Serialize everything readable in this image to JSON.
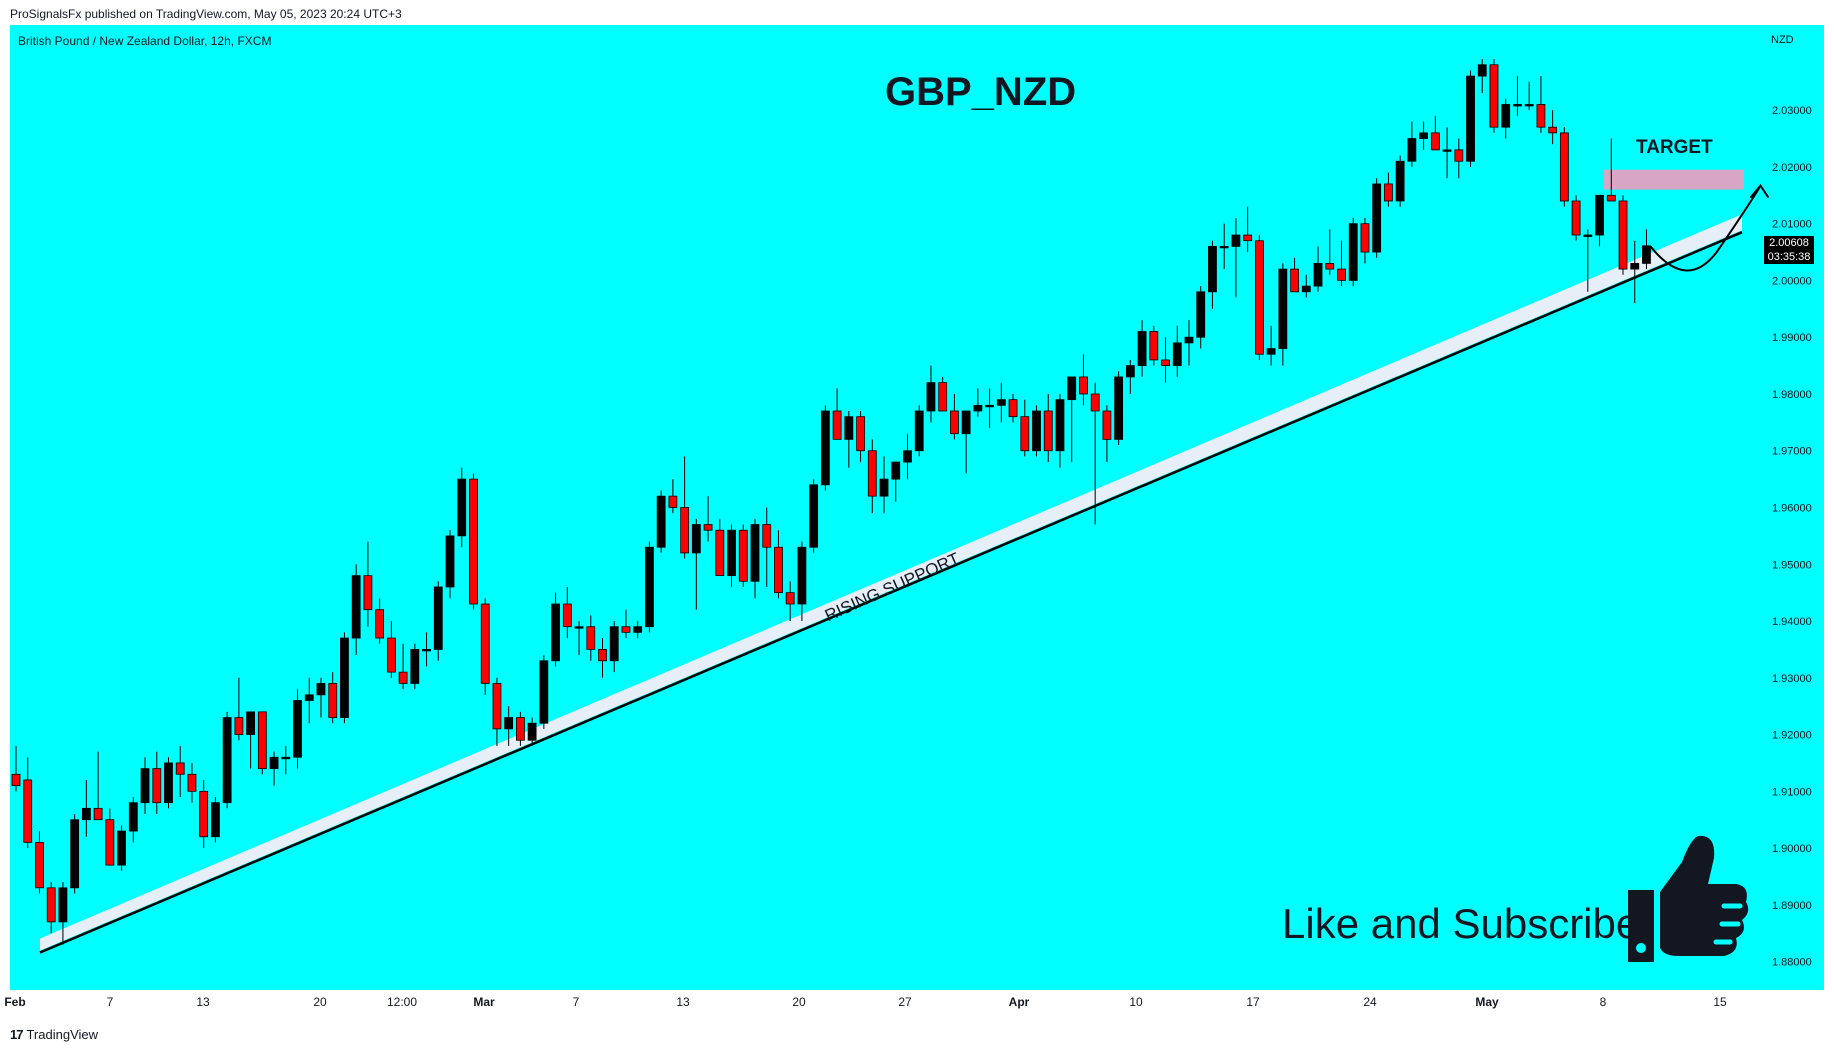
{
  "header": {
    "published": "ProSignalsFx published on TradingView.com, May 05, 2023 20:24 UTC+3"
  },
  "footer": {
    "brand": "TradingView",
    "logo": "17"
  },
  "chart_data": {
    "type": "candlestick",
    "symbol_line": "British Pound / New Zealand Dollar, 12h, FXCM",
    "currency": "NZD",
    "background": "#00FFFF",
    "up_color": "#000000",
    "down_color": "#FF0000",
    "ylim": [
      1.875,
      2.045
    ],
    "y_ticks": [
      "2.03000",
      "2.02000",
      "2.01000",
      "2.00000",
      "1.99000",
      "1.98000",
      "1.97000",
      "1.96000",
      "1.95000",
      "1.94000",
      "1.93000",
      "1.92000",
      "1.91000",
      "1.90000",
      "1.89000",
      "1.88000"
    ],
    "x_ticks": [
      "Feb",
      "7",
      "13",
      "20",
      "12:00",
      "Mar",
      "7",
      "13",
      "20",
      "27",
      "Apr",
      "10",
      "17",
      "24",
      "May",
      "8",
      "15"
    ],
    "last_price": "2.00608",
    "countdown": "03:35:38",
    "annotations": {
      "title": "GBP_NZD",
      "target_label": "TARGET",
      "support_label": "RISING SUPPORT",
      "cta": "Like and Subscribe"
    },
    "trendline": {
      "start": [
        "Feb 2",
        1.8816
      ],
      "end": [
        "May 14",
        2.0085
      ]
    },
    "target_zone": [
      2.016,
      2.0195
    ],
    "candles": [
      [
        1.913,
        1.918,
        1.91,
        1.911
      ],
      [
        1.912,
        1.916,
        1.9,
        1.901
      ],
      [
        1.901,
        1.903,
        1.892,
        1.893
      ],
      [
        1.893,
        1.894,
        1.885,
        1.887
      ],
      [
        1.887,
        1.894,
        1.883,
        1.893
      ],
      [
        1.893,
        1.906,
        1.892,
        1.905
      ],
      [
        1.905,
        1.912,
        1.902,
        1.907
      ],
      [
        1.907,
        1.917,
        1.905,
        1.905
      ],
      [
        1.905,
        1.907,
        1.897,
        1.897
      ],
      [
        1.897,
        1.904,
        1.896,
        1.903
      ],
      [
        1.903,
        1.909,
        1.901,
        1.908
      ],
      [
        1.908,
        1.916,
        1.906,
        1.914
      ],
      [
        1.914,
        1.917,
        1.906,
        1.908
      ],
      [
        1.908,
        1.916,
        1.907,
        1.915
      ],
      [
        1.915,
        1.918,
        1.909,
        1.913
      ],
      [
        1.913,
        1.915,
        1.908,
        1.91
      ],
      [
        1.91,
        1.912,
        1.9,
        1.902
      ],
      [
        1.902,
        1.909,
        1.901,
        1.908
      ],
      [
        1.908,
        1.924,
        1.907,
        1.923
      ],
      [
        1.923,
        1.93,
        1.919,
        1.92
      ],
      [
        1.92,
        1.924,
        1.914,
        1.924
      ],
      [
        1.924,
        1.924,
        1.913,
        1.914
      ],
      [
        1.914,
        1.917,
        1.911,
        1.916
      ],
      [
        1.916,
        1.918,
        1.913,
        1.916
      ],
      [
        1.916,
        1.928,
        1.914,
        1.926
      ],
      [
        1.926,
        1.93,
        1.922,
        1.927
      ],
      [
        1.927,
        1.93,
        1.923,
        1.929
      ],
      [
        1.929,
        1.931,
        1.922,
        1.923
      ],
      [
        1.923,
        1.938,
        1.922,
        1.937
      ],
      [
        1.937,
        1.95,
        1.934,
        1.948
      ],
      [
        1.948,
        1.954,
        1.939,
        1.942
      ],
      [
        1.942,
        1.944,
        1.936,
        1.937
      ],
      [
        1.937,
        1.94,
        1.93,
        1.931
      ],
      [
        1.931,
        1.936,
        1.928,
        1.929
      ],
      [
        1.929,
        1.936,
        1.928,
        1.935
      ],
      [
        1.935,
        1.938,
        1.932,
        1.935
      ],
      [
        1.935,
        1.947,
        1.933,
        1.946
      ],
      [
        1.946,
        1.956,
        1.944,
        1.955
      ],
      [
        1.955,
        1.967,
        1.953,
        1.965
      ],
      [
        1.965,
        1.966,
        1.942,
        1.943
      ],
      [
        1.943,
        1.944,
        1.927,
        1.929
      ],
      [
        1.929,
        1.93,
        1.918,
        1.921
      ],
      [
        1.921,
        1.925,
        1.918,
        1.923
      ],
      [
        1.923,
        1.924,
        1.918,
        1.919
      ],
      [
        1.919,
        1.923,
        1.918,
        1.922
      ],
      [
        1.922,
        1.934,
        1.921,
        1.933
      ],
      [
        1.933,
        1.945,
        1.932,
        1.943
      ],
      [
        1.943,
        1.946,
        1.937,
        1.939
      ],
      [
        1.939,
        1.94,
        1.934,
        1.939
      ],
      [
        1.939,
        1.941,
        1.933,
        1.935
      ],
      [
        1.935,
        1.937,
        1.93,
        1.933
      ],
      [
        1.933,
        1.94,
        1.931,
        1.939
      ],
      [
        1.939,
        1.942,
        1.937,
        1.938
      ],
      [
        1.938,
        1.94,
        1.937,
        1.939
      ],
      [
        1.939,
        1.954,
        1.938,
        1.953
      ],
      [
        1.953,
        1.963,
        1.952,
        1.962
      ],
      [
        1.962,
        1.965,
        1.959,
        1.96
      ],
      [
        1.96,
        1.969,
        1.951,
        1.952
      ],
      [
        1.952,
        1.958,
        1.942,
        1.957
      ],
      [
        1.957,
        1.962,
        1.954,
        1.956
      ],
      [
        1.956,
        1.958,
        1.948,
        1.948
      ],
      [
        1.948,
        1.957,
        1.946,
        1.956
      ],
      [
        1.956,
        1.957,
        1.946,
        1.947
      ],
      [
        1.947,
        1.958,
        1.944,
        1.957
      ],
      [
        1.957,
        1.96,
        1.946,
        1.953
      ],
      [
        1.953,
        1.956,
        1.944,
        1.945
      ],
      [
        1.945,
        1.947,
        1.94,
        1.943
      ],
      [
        1.943,
        1.954,
        1.94,
        1.953
      ],
      [
        1.953,
        1.965,
        1.952,
        1.964
      ],
      [
        1.964,
        1.978,
        1.963,
        1.977
      ],
      [
        1.977,
        1.981,
        1.972,
        1.972
      ],
      [
        1.972,
        1.977,
        1.967,
        1.976
      ],
      [
        1.976,
        1.977,
        1.968,
        1.97
      ],
      [
        1.97,
        1.972,
        1.959,
        1.962
      ],
      [
        1.962,
        1.969,
        1.959,
        1.965
      ],
      [
        1.965,
        1.968,
        1.961,
        1.968
      ],
      [
        1.968,
        1.973,
        1.965,
        1.97
      ],
      [
        1.97,
        1.978,
        1.969,
        1.977
      ],
      [
        1.977,
        1.985,
        1.975,
        1.982
      ],
      [
        1.982,
        1.983,
        1.977,
        1.977
      ],
      [
        1.977,
        1.98,
        1.972,
        1.973
      ],
      [
        1.973,
        1.977,
        1.966,
        1.977
      ],
      [
        1.977,
        1.981,
        1.976,
        1.978
      ],
      [
        1.978,
        1.981,
        1.974,
        1.978
      ],
      [
        1.978,
        1.982,
        1.975,
        1.979
      ],
      [
        1.979,
        1.98,
        1.975,
        1.976
      ],
      [
        1.976,
        1.979,
        1.969,
        1.97
      ],
      [
        1.97,
        1.978,
        1.969,
        1.977
      ],
      [
        1.977,
        1.98,
        1.968,
        1.97
      ],
      [
        1.97,
        1.98,
        1.967,
        1.979
      ],
      [
        1.979,
        1.983,
        1.968,
        1.983
      ],
      [
        1.983,
        1.987,
        1.978,
        1.98
      ],
      [
        1.98,
        1.982,
        1.957,
        1.977
      ],
      [
        1.977,
        1.978,
        1.968,
        1.972
      ],
      [
        1.972,
        1.984,
        1.971,
        1.983
      ],
      [
        1.983,
        1.986,
        1.98,
        1.985
      ],
      [
        1.985,
        1.993,
        1.983,
        1.991
      ],
      [
        1.991,
        1.992,
        1.985,
        1.986
      ],
      [
        1.986,
        1.99,
        1.982,
        1.985
      ],
      [
        1.985,
        1.992,
        1.983,
        1.989
      ],
      [
        1.989,
        1.993,
        1.985,
        1.99
      ],
      [
        1.99,
        1.999,
        1.988,
        1.998
      ],
      [
        1.998,
        2.007,
        1.995,
        2.006
      ],
      [
        2.006,
        2.01,
        2.002,
        2.006
      ],
      [
        2.006,
        2.011,
        1.997,
        2.008
      ],
      [
        2.008,
        2.013,
        2.005,
        2.007
      ],
      [
        2.007,
        2.008,
        1.986,
        1.987
      ],
      [
        1.987,
        1.992,
        1.985,
        1.988
      ],
      [
        1.988,
        2.003,
        1.985,
        2.002
      ],
      [
        2.002,
        2.004,
        1.998,
        1.998
      ],
      [
        1.998,
        2.001,
        1.997,
        1.999
      ],
      [
        1.999,
        2.006,
        1.998,
        2.003
      ],
      [
        2.003,
        2.009,
        2.001,
        2.002
      ],
      [
        2.002,
        2.007,
        1.999,
        2.0
      ],
      [
        2.0,
        2.011,
        1.999,
        2.01
      ],
      [
        2.01,
        2.011,
        2.003,
        2.005
      ],
      [
        2.005,
        2.018,
        2.004,
        2.017
      ],
      [
        2.017,
        2.019,
        2.013,
        2.014
      ],
      [
        2.014,
        2.022,
        2.013,
        2.021
      ],
      [
        2.021,
        2.028,
        2.02,
        2.025
      ],
      [
        2.025,
        2.028,
        2.023,
        2.026
      ],
      [
        2.026,
        2.029,
        2.023,
        2.023
      ],
      [
        2.023,
        2.027,
        2.018,
        2.023
      ],
      [
        2.023,
        2.025,
        2.018,
        2.021
      ],
      [
        2.021,
        2.037,
        2.02,
        2.036
      ],
      [
        2.036,
        2.039,
        2.033,
        2.038
      ],
      [
        2.038,
        2.039,
        2.026,
        2.027
      ],
      [
        2.027,
        2.032,
        2.025,
        2.031
      ],
      [
        2.031,
        2.036,
        2.029,
        2.031
      ],
      [
        2.031,
        2.035,
        2.03,
        2.031
      ],
      [
        2.031,
        2.036,
        2.026,
        2.027
      ],
      [
        2.027,
        2.03,
        2.024,
        2.026
      ],
      [
        2.026,
        2.027,
        2.013,
        2.014
      ],
      [
        2.014,
        2.015,
        2.007,
        2.008
      ],
      [
        2.008,
        2.009,
        1.998,
        2.008
      ],
      [
        2.008,
        2.015,
        2.006,
        2.015
      ],
      [
        2.015,
        2.025,
        2.014,
        2.014
      ],
      [
        2.014,
        2.015,
        2.001,
        2.002
      ],
      [
        2.002,
        2.007,
        1.996,
        2.003
      ],
      [
        2.003,
        2.009,
        2.002,
        2.0061
      ]
    ]
  }
}
